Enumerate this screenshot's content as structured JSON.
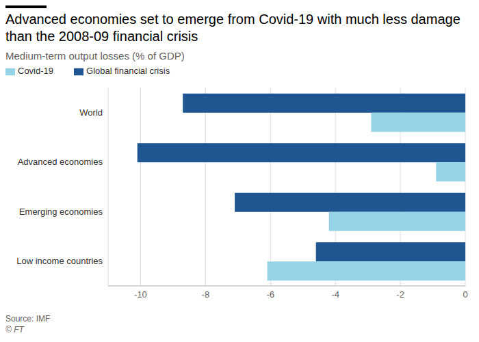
{
  "chart_data": {
    "type": "bar",
    "orientation": "horizontal",
    "title": "Advanced economies set to emerge from Covid-19 with much less damage than the 2008-09 financial crisis",
    "subtitle": "Medium-term output losses (% of GDP)",
    "categories": [
      "World",
      "Advanced economies",
      "Emerging economies",
      "Low income countries"
    ],
    "series": [
      {
        "name": "Global financial crisis",
        "color": "#1f5591",
        "values": [
          -8.7,
          -10.1,
          -7.1,
          -4.6
        ]
      },
      {
        "name": "Covid-19",
        "color": "#96d3e6",
        "values": [
          -2.9,
          -0.9,
          -4.2,
          -6.1
        ]
      }
    ],
    "xlim": [
      -11,
      0
    ],
    "xticks": [
      -10,
      -8,
      -6,
      -4,
      -2,
      0
    ],
    "grid": true,
    "legend": "top-left",
    "source": "Source: IMF",
    "credit": "© FT"
  }
}
